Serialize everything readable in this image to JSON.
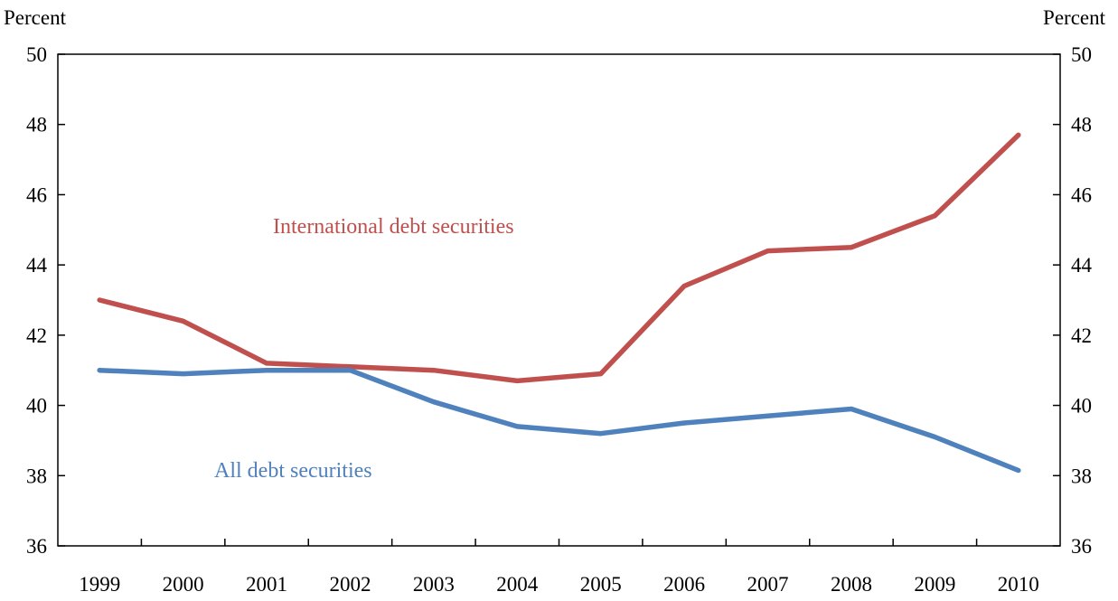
{
  "chart_data": {
    "type": "line",
    "title": "",
    "ylabel_left": "Percent",
    "ylabel_right": "Percent",
    "xlabel": "",
    "categories": [
      "1999",
      "2000",
      "2001",
      "2002",
      "2003",
      "2004",
      "2005",
      "2006",
      "2007",
      "2008",
      "2009",
      "2010"
    ],
    "ylim": [
      36,
      50
    ],
    "yticks": [
      36,
      38,
      40,
      42,
      44,
      46,
      48,
      50
    ],
    "grid": false,
    "legend": "none",
    "series": [
      {
        "name": "International debt securities",
        "color": "#c0504d",
        "values": [
          43.0,
          42.4,
          41.2,
          41.1,
          41.0,
          40.7,
          40.9,
          43.4,
          44.4,
          44.5,
          45.4,
          47.7
        ]
      },
      {
        "name": "All debt securities",
        "color": "#4f81bd",
        "values": [
          41.0,
          40.9,
          41.0,
          41.0,
          40.1,
          39.4,
          39.2,
          39.5,
          39.7,
          39.9,
          39.1,
          38.15
        ]
      }
    ]
  }
}
